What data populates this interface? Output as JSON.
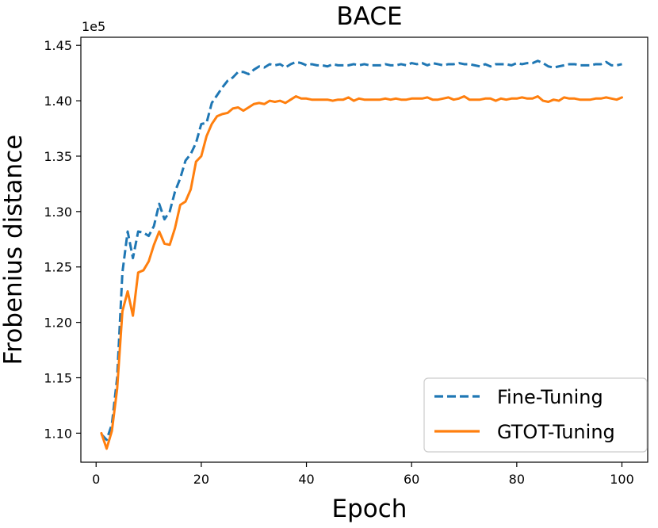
{
  "chart_data": {
    "type": "line",
    "title": "BACE",
    "xlabel": "Epoch",
    "ylabel": "Frobenius distance",
    "y_offset_label": "1e5",
    "y_multiplier": 100000,
    "xlim": [
      -2.9,
      104.9
    ],
    "ylim": [
      1.0738,
      1.4573
    ],
    "x_ticks": [
      0,
      20,
      40,
      60,
      80,
      100
    ],
    "x_tick_labels": [
      "0",
      "20",
      "40",
      "60",
      "80",
      "100"
    ],
    "y_ticks": [
      1.1,
      1.15,
      1.2,
      1.25,
      1.3,
      1.35,
      1.4,
      1.45
    ],
    "y_tick_labels": [
      "1.10",
      "1.15",
      "1.20",
      "1.25",
      "1.30",
      "1.35",
      "1.40",
      "1.45"
    ],
    "grid": false,
    "legend_position": "bottom-right",
    "series": [
      {
        "name": "Fine-Tuning",
        "color": "#1f77b4",
        "style": "dashed",
        "x": [
          1,
          2,
          3,
          4,
          5,
          6,
          7,
          8,
          9,
          10,
          11,
          12,
          13,
          14,
          15,
          16,
          17,
          18,
          19,
          20,
          21,
          22,
          23,
          24,
          25,
          26,
          27,
          28,
          29,
          30,
          31,
          32,
          33,
          34,
          35,
          36,
          37,
          38,
          39,
          40,
          41,
          42,
          43,
          44,
          45,
          46,
          47,
          48,
          49,
          50,
          51,
          52,
          53,
          54,
          55,
          56,
          57,
          58,
          59,
          60,
          61,
          62,
          63,
          64,
          65,
          66,
          67,
          68,
          69,
          70,
          71,
          72,
          73,
          74,
          75,
          76,
          77,
          78,
          79,
          80,
          81,
          82,
          83,
          84,
          85,
          86,
          87,
          88,
          89,
          90,
          91,
          92,
          93,
          94,
          95,
          96,
          97,
          98,
          99,
          100
        ],
        "y": [
          1.099,
          1.094,
          1.108,
          1.15,
          1.245,
          1.282,
          1.258,
          1.282,
          1.281,
          1.278,
          1.287,
          1.307,
          1.293,
          1.3,
          1.318,
          1.33,
          1.346,
          1.352,
          1.362,
          1.379,
          1.38,
          1.398,
          1.405,
          1.412,
          1.418,
          1.421,
          1.426,
          1.426,
          1.424,
          1.428,
          1.431,
          1.43,
          1.433,
          1.432,
          1.433,
          1.43,
          1.433,
          1.435,
          1.434,
          1.432,
          1.433,
          1.432,
          1.432,
          1.431,
          1.433,
          1.432,
          1.432,
          1.432,
          1.433,
          1.432,
          1.433,
          1.432,
          1.432,
          1.432,
          1.433,
          1.432,
          1.432,
          1.433,
          1.432,
          1.434,
          1.433,
          1.434,
          1.432,
          1.434,
          1.433,
          1.432,
          1.433,
          1.433,
          1.434,
          1.433,
          1.433,
          1.432,
          1.431,
          1.433,
          1.431,
          1.433,
          1.433,
          1.433,
          1.432,
          1.434,
          1.433,
          1.434,
          1.434,
          1.436,
          1.434,
          1.431,
          1.43,
          1.431,
          1.432,
          1.433,
          1.433,
          1.432,
          1.432,
          1.432,
          1.433,
          1.433,
          1.435,
          1.432,
          1.432,
          1.433
        ]
      },
      {
        "name": "GTOT-Tuning",
        "color": "#ff7f0e",
        "style": "solid",
        "x": [
          1,
          2,
          3,
          4,
          5,
          6,
          7,
          8,
          9,
          10,
          11,
          12,
          13,
          14,
          15,
          16,
          17,
          18,
          19,
          20,
          21,
          22,
          23,
          24,
          25,
          26,
          27,
          28,
          29,
          30,
          31,
          32,
          33,
          34,
          35,
          36,
          37,
          38,
          39,
          40,
          41,
          42,
          43,
          44,
          45,
          46,
          47,
          48,
          49,
          50,
          51,
          52,
          53,
          54,
          55,
          56,
          57,
          58,
          59,
          60,
          61,
          62,
          63,
          64,
          65,
          66,
          67,
          68,
          69,
          70,
          71,
          72,
          73,
          74,
          75,
          76,
          77,
          78,
          79,
          80,
          81,
          82,
          83,
          84,
          85,
          86,
          87,
          88,
          89,
          90,
          91,
          92,
          93,
          94,
          95,
          96,
          97,
          98,
          99,
          100
        ],
        "y": [
          1.1,
          1.086,
          1.102,
          1.14,
          1.21,
          1.228,
          1.206,
          1.245,
          1.247,
          1.255,
          1.27,
          1.282,
          1.271,
          1.27,
          1.285,
          1.306,
          1.309,
          1.32,
          1.345,
          1.35,
          1.368,
          1.379,
          1.386,
          1.388,
          1.389,
          1.393,
          1.394,
          1.391,
          1.394,
          1.397,
          1.398,
          1.397,
          1.4,
          1.399,
          1.4,
          1.398,
          1.401,
          1.404,
          1.402,
          1.402,
          1.401,
          1.401,
          1.401,
          1.401,
          1.4,
          1.401,
          1.401,
          1.403,
          1.4,
          1.402,
          1.401,
          1.401,
          1.401,
          1.401,
          1.402,
          1.401,
          1.402,
          1.401,
          1.401,
          1.402,
          1.402,
          1.402,
          1.403,
          1.401,
          1.401,
          1.402,
          1.403,
          1.401,
          1.402,
          1.404,
          1.401,
          1.401,
          1.401,
          1.402,
          1.402,
          1.4,
          1.402,
          1.401,
          1.402,
          1.402,
          1.403,
          1.402,
          1.402,
          1.404,
          1.4,
          1.399,
          1.401,
          1.4,
          1.403,
          1.402,
          1.402,
          1.401,
          1.401,
          1.401,
          1.402,
          1.402,
          1.403,
          1.402,
          1.401,
          1.403
        ]
      }
    ]
  }
}
